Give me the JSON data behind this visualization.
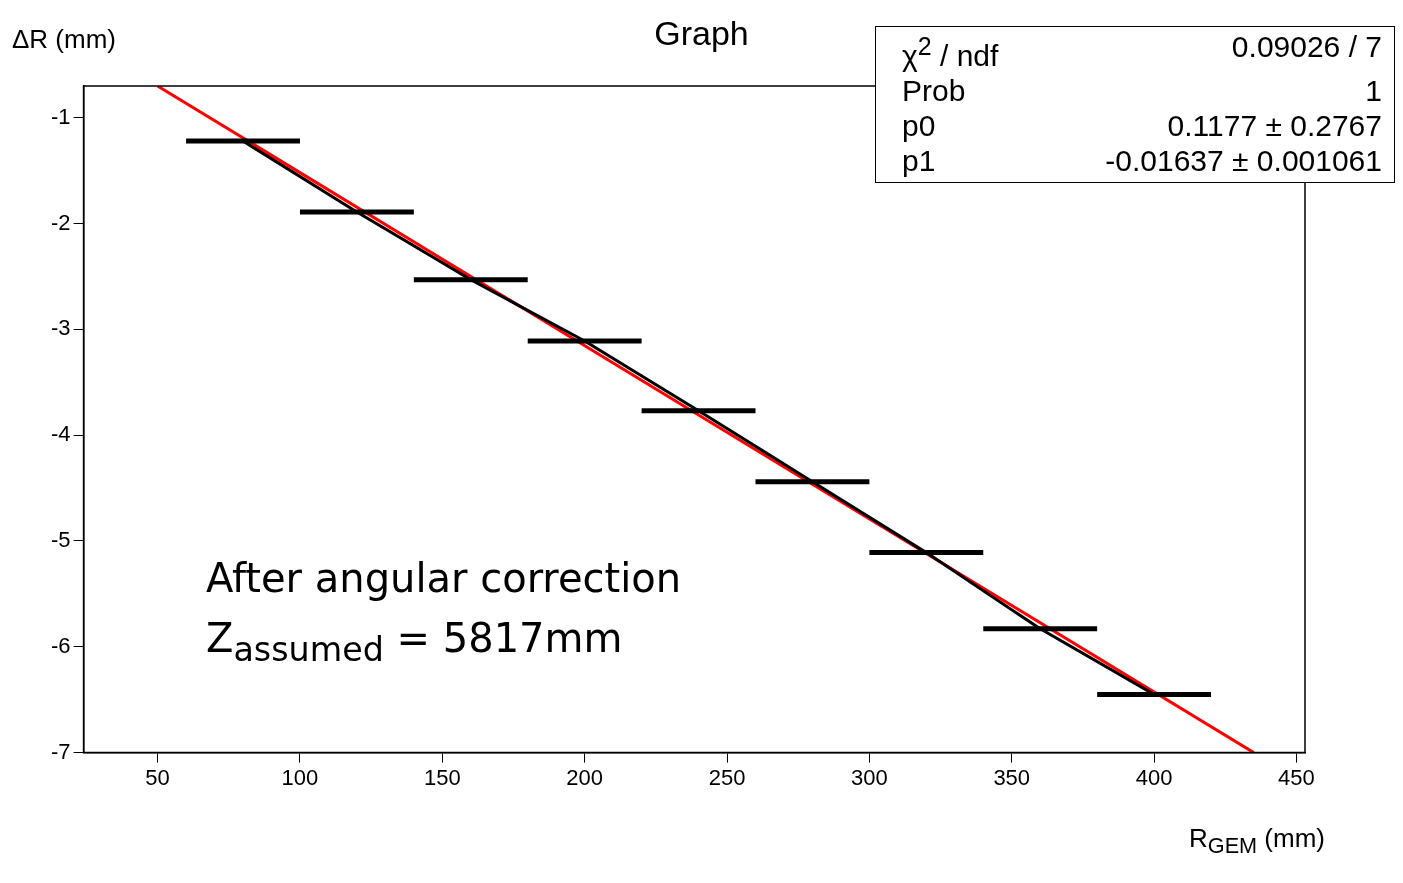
{
  "chart_data": {
    "type": "line",
    "title": "Graph",
    "xlabel": "R$_{GEM}$ (mm)",
    "ylabel": "ΔR (mm)",
    "xlim": [
      24,
      453
    ],
    "xticks": [
      50,
      100,
      150,
      200,
      250,
      300,
      350,
      400,
      450
    ],
    "ylim": [
      -7,
      -0.7
    ],
    "yticks": [
      -7,
      -6,
      -5,
      -4,
      -3,
      -2,
      -1
    ],
    "grid": false,
    "legend": false,
    "marker": "none",
    "line_style": "solid",
    "series": [
      {
        "color": "#000000",
        "x": [
          80,
          120,
          160,
          200,
          240,
          280,
          320,
          360,
          400
        ],
        "values": [
          -1.22,
          -1.89,
          -2.53,
          -3.11,
          -3.77,
          -4.44,
          -5.11,
          -5.83,
          -6.45
        ],
        "xerrors": [
          20,
          20,
          20,
          20,
          20,
          20,
          20,
          20,
          20
        ]
      },
      {
        "color": "#ff0000",
        "x": [
          50,
          435
        ],
        "values": [
          -0.7,
          -7.0
        ]
      }
    ],
    "annotations": [
      "χ$^{2}$ / ndf",
      "0.09026 / 7",
      "Prob",
      "1",
      "p0",
      "0.1177 ± 0.2767",
      "p1",
      "-0.01637 ± 0.001061",
      "After angular correction",
      "Z$_{assumed}$ = 5817mm"
    ]
  }
}
